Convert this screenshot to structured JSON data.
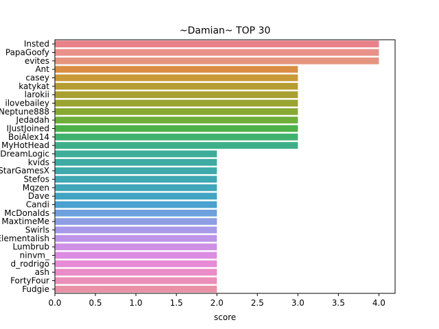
{
  "chart_data": {
    "type": "bar",
    "orientation": "horizontal",
    "title": "~Damian~ TOP 30",
    "xlabel": "score",
    "ylabel": "",
    "xlim": [
      0,
      4.2
    ],
    "xticks": [
      "0.0",
      "0.5",
      "1.0",
      "1.5",
      "2.0",
      "2.5",
      "3.0",
      "3.5",
      "4.0"
    ],
    "grid": false,
    "legend": "none",
    "categories": [
      "Insted",
      "PapaGoofy",
      "evites",
      "Ant",
      "casey",
      "katykat",
      "larokii",
      "ilovebailey",
      "Neptune888",
      "Jedadah",
      "IJustJoined",
      "BoiAlex14",
      "MyHotHead",
      "DreamLogic",
      "kvids",
      "StarGamesX",
      "Stefos",
      "Mqzen",
      "Dave",
      "Candi",
      "McDonalds",
      "MaxtimeMe",
      "Swirls",
      "Elementalish",
      "Lumbrub",
      "ninvm_",
      "d_rodrigo",
      "ash",
      "FortyFour",
      "Fudgie"
    ],
    "values": [
      4,
      4,
      4,
      3,
      3,
      3,
      3,
      3,
      3,
      3,
      3,
      3,
      3,
      2,
      2,
      2,
      2,
      2,
      2,
      2,
      2,
      2,
      2,
      2,
      2,
      2,
      2,
      2,
      2,
      2
    ],
    "colors": [
      "#e8818a",
      "#e9918a",
      "#e5957f",
      "#d98e44",
      "#c99a37",
      "#b69d32",
      "#a9a031",
      "#9aa431",
      "#87a832",
      "#6eaf3a",
      "#4cb148",
      "#3fb16f",
      "#3eaf89",
      "#3dad99",
      "#3daba2",
      "#3eaaab",
      "#3fa8b2",
      "#40a7b9",
      "#42a4c2",
      "#4aa1cf",
      "#6ea0dd",
      "#8d9ee5",
      "#a89ae8",
      "#bd95e8",
      "#cd90e4",
      "#dc8ce2",
      "#e78bd6",
      "#ea8cc8",
      "#eb8eb8",
      "#e991a6"
    ]
  }
}
